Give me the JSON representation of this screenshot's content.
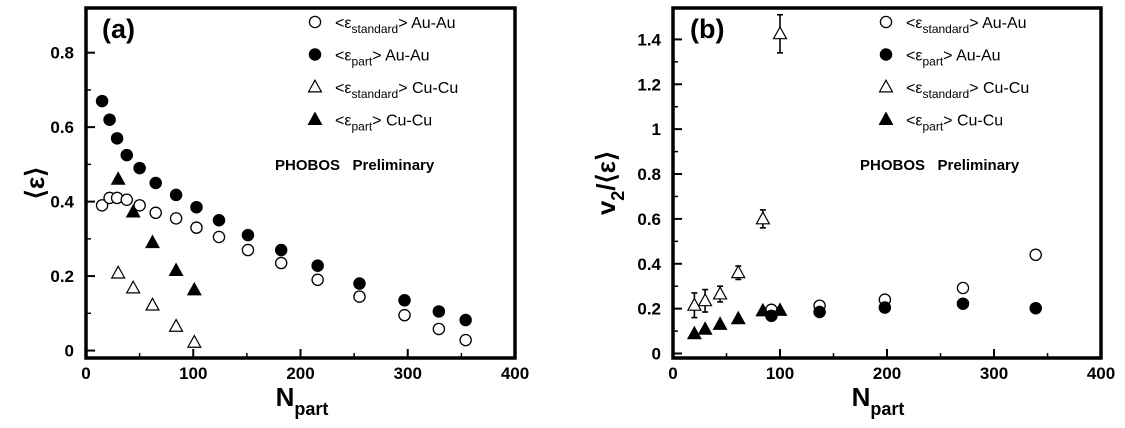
{
  "chart_data": [
    {
      "panel_label": "(a)",
      "type": "scatter",
      "ylabel": "⟨ε⟩",
      "xlabel": {
        "main": "N",
        "sub": "part"
      },
      "xlim": [
        0,
        400
      ],
      "ylim": [
        -0.02,
        0.92
      ],
      "xticks": [
        0,
        100,
        200,
        300,
        400
      ],
      "yticks": [
        0,
        0.2,
        0.4,
        0.6,
        0.8
      ],
      "ytick_labels": [
        "0",
        "0.2",
        "0.4",
        "0.6",
        "0.8"
      ],
      "annotation": "PHOBOS   Preliminary",
      "legend": [
        {
          "pre": "<ε",
          "sub": "standard",
          "post": "> Au-Au",
          "marker": "circle-open"
        },
        {
          "pre": "<ε",
          "sub": "part",
          "post": "> Au-Au",
          "marker": "circle-filled"
        },
        {
          "pre": "<ε",
          "sub": "standard",
          "post": "> Cu-Cu",
          "marker": "triangle-open"
        },
        {
          "pre": "<ε",
          "sub": "part",
          "post": "> Cu-Cu",
          "marker": "triangle-filled"
        }
      ],
      "series": [
        {
          "key": "eps_standard_auau",
          "marker": "circle-open",
          "points": [
            [
              15,
              0.39
            ],
            [
              22,
              0.41
            ],
            [
              29,
              0.41
            ],
            [
              38,
              0.405
            ],
            [
              50,
              0.39
            ],
            [
              65,
              0.37
            ],
            [
              84,
              0.355
            ],
            [
              103,
              0.33
            ],
            [
              124,
              0.305
            ],
            [
              151,
              0.27
            ],
            [
              182,
              0.235
            ],
            [
              216,
              0.19
            ],
            [
              255,
              0.145
            ],
            [
              297,
              0.095
            ],
            [
              329,
              0.058
            ],
            [
              354,
              0.028
            ]
          ]
        },
        {
          "key": "eps_part_auau",
          "marker": "circle-filled",
          "points": [
            [
              15,
              0.67
            ],
            [
              22,
              0.62
            ],
            [
              29,
              0.57
            ],
            [
              38,
              0.525
            ],
            [
              50,
              0.49
            ],
            [
              65,
              0.45
            ],
            [
              84,
              0.418
            ],
            [
              103,
              0.385
            ],
            [
              124,
              0.35
            ],
            [
              151,
              0.31
            ],
            [
              182,
              0.27
            ],
            [
              216,
              0.228
            ],
            [
              255,
              0.18
            ],
            [
              297,
              0.135
            ],
            [
              329,
              0.105
            ],
            [
              354,
              0.082
            ]
          ]
        },
        {
          "key": "eps_standard_cucu",
          "marker": "triangle-open",
          "points": [
            [
              30,
              0.208
            ],
            [
              44,
              0.168
            ],
            [
              62,
              0.122
            ],
            [
              84,
              0.065
            ],
            [
              101,
              0.022
            ]
          ]
        },
        {
          "key": "eps_part_cucu",
          "marker": "triangle-filled",
          "points": [
            [
              30,
              0.46
            ],
            [
              44,
              0.372
            ],
            [
              62,
              0.29
            ],
            [
              84,
              0.215
            ],
            [
              101,
              0.163
            ]
          ]
        }
      ]
    },
    {
      "panel_label": "(b)",
      "type": "scatter",
      "ylabel": {
        "pre": "v",
        "sub": "2",
        "post": "/⟨ε⟩"
      },
      "xlabel": {
        "main": "N",
        "sub": "part"
      },
      "xlim": [
        0,
        400
      ],
      "ylim": [
        -0.02,
        1.54
      ],
      "xticks": [
        0,
        100,
        200,
        300,
        400
      ],
      "yticks": [
        0,
        0.2,
        0.4,
        0.6,
        0.8,
        1,
        1.2,
        1.4
      ],
      "ytick_labels": [
        "0",
        "0.2",
        "0.4",
        "0.6",
        "0.8",
        "1",
        "1.2",
        "1.4"
      ],
      "annotation": "PHOBOS   Preliminary",
      "legend": [
        {
          "pre": "<ε",
          "sub": "standard",
          "post": "> Au-Au",
          "marker": "circle-open"
        },
        {
          "pre": "<ε",
          "sub": "part",
          "post": "> Au-Au",
          "marker": "circle-filled"
        },
        {
          "pre": "<ε",
          "sub": "standard",
          "post": "> Cu-Cu",
          "marker": "triangle-open"
        },
        {
          "pre": "<ε",
          "sub": "part",
          "post": "> Cu-Cu",
          "marker": "triangle-filled"
        }
      ],
      "series": [
        {
          "key": "v2_eps_standard_auau",
          "marker": "circle-open",
          "points": [
            [
              92,
              0.195
            ],
            [
              137,
              0.213
            ],
            [
              198,
              0.24
            ],
            [
              271,
              0.292
            ],
            [
              339,
              0.44
            ]
          ]
        },
        {
          "key": "v2_eps_part_auau",
          "marker": "circle-filled",
          "points": [
            [
              92,
              0.168
            ],
            [
              137,
              0.185
            ],
            [
              198,
              0.205
            ],
            [
              271,
              0.222
            ],
            [
              339,
              0.202
            ]
          ]
        },
        {
          "key": "v2_eps_standard_cucu",
          "marker": "triangle-open",
          "points": [
            [
              20,
              0.215
            ],
            [
              30,
              0.235
            ],
            [
              44,
              0.265
            ],
            [
              61,
              0.36
            ],
            [
              84,
              0.6
            ],
            [
              100,
              1.425
            ]
          ],
          "errors": [
            0.055,
            0.05,
            0.035,
            0.03,
            0.04,
            0.085
          ]
        },
        {
          "key": "v2_eps_part_cucu",
          "marker": "triangle-filled",
          "points": [
            [
              20,
              0.088
            ],
            [
              30,
              0.108
            ],
            [
              44,
              0.13
            ],
            [
              61,
              0.155
            ],
            [
              84,
              0.19
            ],
            [
              100,
              0.192
            ]
          ]
        }
      ]
    }
  ]
}
